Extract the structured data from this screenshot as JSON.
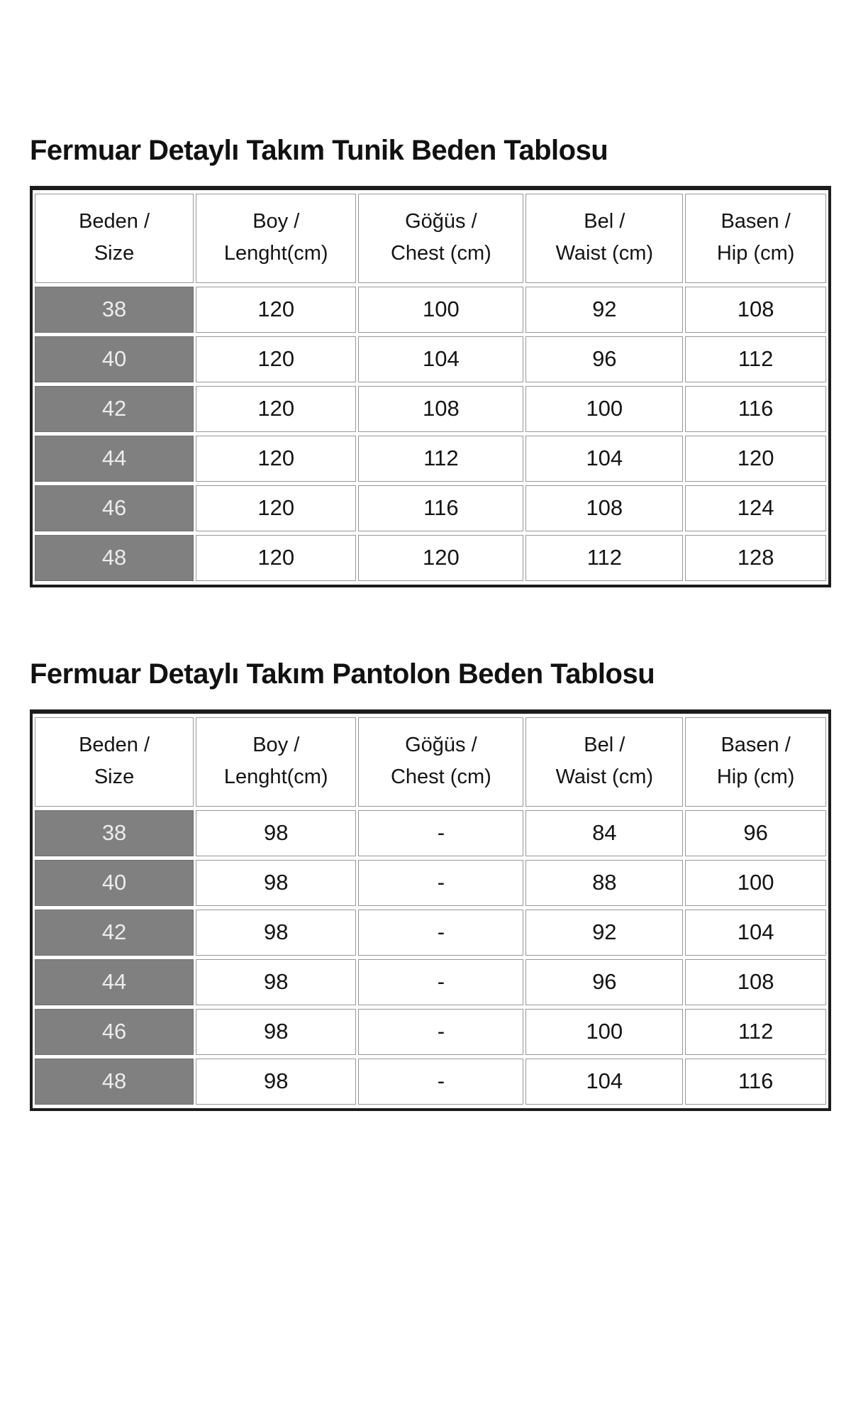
{
  "colors": {
    "size_cell_bg": "#808080",
    "size_cell_text": "#ececec",
    "grid_line": "#989898",
    "border_outer": "#1c1c1c",
    "title_text": "#111111"
  },
  "sections": [
    {
      "title": "Fermuar Detaylı Takım Tunik Beden Tablosu",
      "table": {
        "headers": [
          {
            "line1": "Beden /",
            "line2": "Size"
          },
          {
            "line1": "Boy /",
            "line2": "Lenght(cm)"
          },
          {
            "line1": "Göğüs /",
            "line2": "Chest (cm)"
          },
          {
            "line1": "Bel /",
            "line2": "Waist (cm)"
          },
          {
            "line1": "Basen /",
            "line2": "Hip (cm)"
          }
        ],
        "rows": [
          [
            "38",
            "120",
            "100",
            "92",
            "108"
          ],
          [
            "40",
            "120",
            "104",
            "96",
            "112"
          ],
          [
            "42",
            "120",
            "108",
            "100",
            "116"
          ],
          [
            "44",
            "120",
            "112",
            "104",
            "120"
          ],
          [
            "46",
            "120",
            "116",
            "108",
            "124"
          ],
          [
            "48",
            "120",
            "120",
            "112",
            "128"
          ]
        ]
      }
    },
    {
      "title": "Fermuar Detaylı Takım Pantolon Beden Tablosu",
      "table": {
        "headers": [
          {
            "line1": "Beden /",
            "line2": "Size"
          },
          {
            "line1": "Boy /",
            "line2": "Lenght(cm)"
          },
          {
            "line1": "Göğüs /",
            "line2": "Chest (cm)"
          },
          {
            "line1": "Bel /",
            "line2": "Waist (cm)"
          },
          {
            "line1": "Basen /",
            "line2": "Hip (cm)"
          }
        ],
        "rows": [
          [
            "38",
            "98",
            "-",
            "84",
            "96"
          ],
          [
            "40",
            "98",
            "-",
            "88",
            "100"
          ],
          [
            "42",
            "98",
            "-",
            "92",
            "104"
          ],
          [
            "44",
            "98",
            "-",
            "96",
            "108"
          ],
          [
            "46",
            "98",
            "-",
            "100",
            "112"
          ],
          [
            "48",
            "98",
            "-",
            "104",
            "116"
          ]
        ]
      }
    }
  ]
}
